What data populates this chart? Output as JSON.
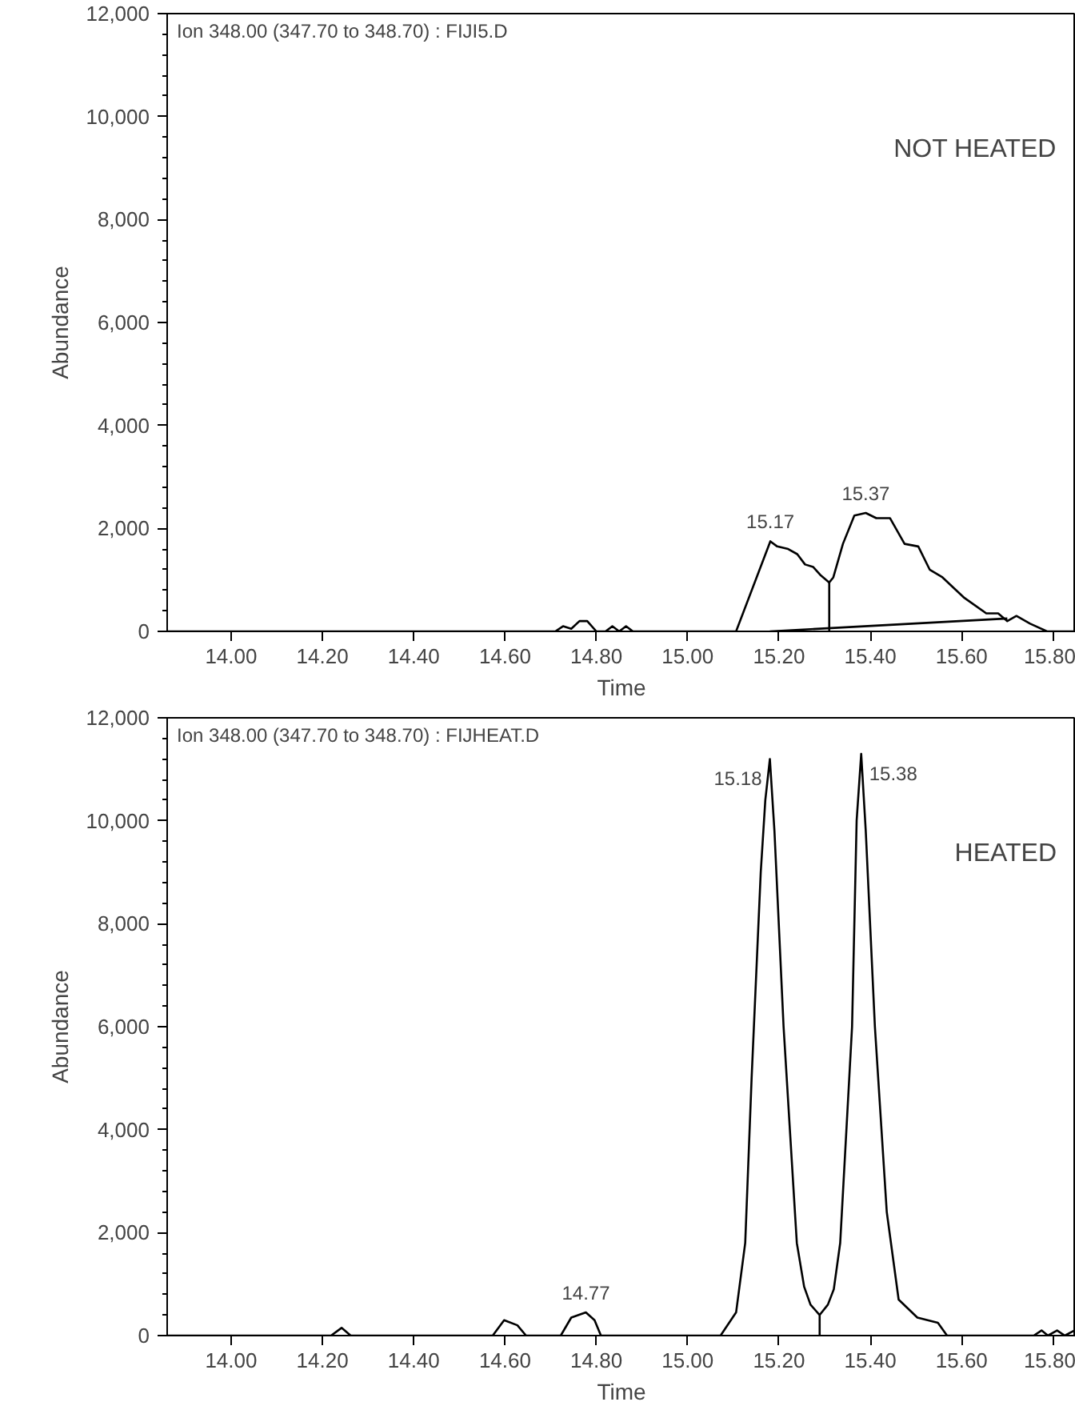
{
  "chart_data": [
    {
      "type": "line",
      "xlabel": "Time",
      "ylabel": "Abundance",
      "xlim": [
        13.86,
        15.85
      ],
      "ylim": [
        0,
        12000
      ],
      "xticks": [
        {
          "value": 14.0,
          "label": "14.00"
        },
        {
          "value": 14.2,
          "label": "14.20"
        },
        {
          "value": 14.4,
          "label": "14.40"
        },
        {
          "value": 14.6,
          "label": "14.60"
        },
        {
          "value": 14.8,
          "label": "14.80"
        },
        {
          "value": 15.0,
          "label": "15.00"
        },
        {
          "value": 15.2,
          "label": "15.20"
        },
        {
          "value": 15.4,
          "label": "15.40"
        },
        {
          "value": 15.6,
          "label": "15.60"
        },
        {
          "value": 15.8,
          "label": "15.80"
        }
      ],
      "yticks": [
        0,
        {
          "value": 2000,
          "label": "2,000"
        },
        {
          "value": 4000,
          "label": "4,000"
        },
        {
          "value": 6000,
          "label": "6,000"
        },
        {
          "value": 8000,
          "label": "8,000"
        },
        {
          "value": 10000,
          "label": "10,000"
        },
        {
          "value": 12000,
          "label": "12,000"
        }
      ],
      "grid": false,
      "marker": "none",
      "line_style": "solid",
      "series": [
        {
          "color": "#000000",
          "x": [
            13.86,
            14.71,
            14.727,
            14.745,
            14.763,
            14.78,
            14.8,
            14.82,
            14.835,
            14.85,
            14.865,
            14.88,
            15.106,
            15.181,
            15.196,
            15.22,
            15.24,
            15.257,
            15.275,
            15.29,
            15.31,
            15.319,
            15.34,
            15.365,
            15.39,
            15.413,
            15.443,
            15.475,
            15.505,
            15.53,
            15.558,
            15.606,
            15.654,
            15.68,
            15.7,
            15.72,
            15.75,
            15.787,
            15.85
          ],
          "values": [
            0,
            0,
            100,
            50,
            200,
            200,
            0,
            0,
            100,
            0,
            100,
            0,
            0,
            1750,
            1650,
            1600,
            1500,
            1300,
            1250,
            1100,
            950,
            1050,
            1700,
            2250,
            2300,
            2200,
            2200,
            1700,
            1650,
            1200,
            1050,
            650,
            350,
            350,
            200,
            300,
            150,
            0,
            0
          ]
        },
        {
          "color": "#000000",
          "x": [
            15.31,
            15.31
          ],
          "values": [
            950,
            0
          ]
        },
        {
          "color": "#000000",
          "x": [
            15.18,
            15.7
          ],
          "values": [
            0,
            250
          ]
        }
      ],
      "annotations": [
        "Ion 348.00 (347.70 to 348.70) : FIJI5.D",
        "NOT HEATED",
        {
          "text": "15.17",
          "x": 15.181,
          "y": 1750
        },
        {
          "text": "15.37",
          "x": 15.39,
          "y": 2300
        }
      ]
    },
    {
      "type": "line",
      "xlabel": "Time",
      "ylabel": "Abundance",
      "xlim": [
        13.86,
        15.85
      ],
      "ylim": [
        0,
        12000
      ],
      "xticks": [
        {
          "value": 14.0,
          "label": "14.00"
        },
        {
          "value": 14.2,
          "label": "14.20"
        },
        {
          "value": 14.4,
          "label": "14.40"
        },
        {
          "value": 14.6,
          "label": "14.60"
        },
        {
          "value": 14.8,
          "label": "14.80"
        },
        {
          "value": 15.0,
          "label": "15.00"
        },
        {
          "value": 15.2,
          "label": "15.20"
        },
        {
          "value": 15.4,
          "label": "15.40"
        },
        {
          "value": 15.6,
          "label": "15.60"
        },
        {
          "value": 15.8,
          "label": "15.80"
        }
      ],
      "yticks": [
        0,
        {
          "value": 2000,
          "label": "2,000"
        },
        {
          "value": 4000,
          "label": "4,000"
        },
        {
          "value": 6000,
          "label": "6,000"
        },
        {
          "value": 8000,
          "label": "8,000"
        },
        {
          "value": 10000,
          "label": "10,000"
        },
        {
          "value": 12000,
          "label": "12,000"
        }
      ],
      "grid": false,
      "marker": "none",
      "line_style": "solid",
      "series": [
        {
          "color": "#000000",
          "x": [
            13.86,
            14.219,
            14.242,
            14.262,
            14.573,
            14.598,
            14.627,
            14.646,
            14.722,
            14.745,
            14.777,
            14.796,
            14.81,
            15.072,
            15.106,
            15.126,
            15.14,
            15.16,
            15.17,
            15.18,
            15.19,
            15.21,
            15.239,
            15.255,
            15.269,
            15.289,
            15.289,
            15.289,
            15.307,
            15.32,
            15.334,
            15.36,
            15.37,
            15.38,
            15.39,
            15.41,
            15.436,
            15.462,
            15.503,
            15.548,
            15.568,
            15.758,
            15.775,
            15.789,
            15.809,
            15.826,
            15.847,
            15.85
          ],
          "values": [
            0,
            0,
            150,
            0,
            0,
            300,
            200,
            0,
            0,
            350,
            450,
            300,
            0,
            0,
            450,
            1800,
            5000,
            9000,
            10400,
            11200,
            9800,
            6000,
            1800,
            950,
            600,
            400,
            0,
            400,
            600,
            900,
            1800,
            6000,
            10000,
            11300,
            9800,
            6000,
            2400,
            700,
            350,
            250,
            0,
            0,
            100,
            0,
            100,
            0,
            100,
            100
          ]
        }
      ],
      "annotations": [
        "Ion 348.00 (347.70 to 348.70) : FIJHEAT.D",
        "HEATED",
        {
          "text": "14.77",
          "x": 14.777,
          "y": 450
        },
        {
          "text": "15.18",
          "x": 15.18,
          "y": 11200
        },
        {
          "text": "15.38",
          "x": 15.38,
          "y": 11300
        }
      ]
    }
  ]
}
